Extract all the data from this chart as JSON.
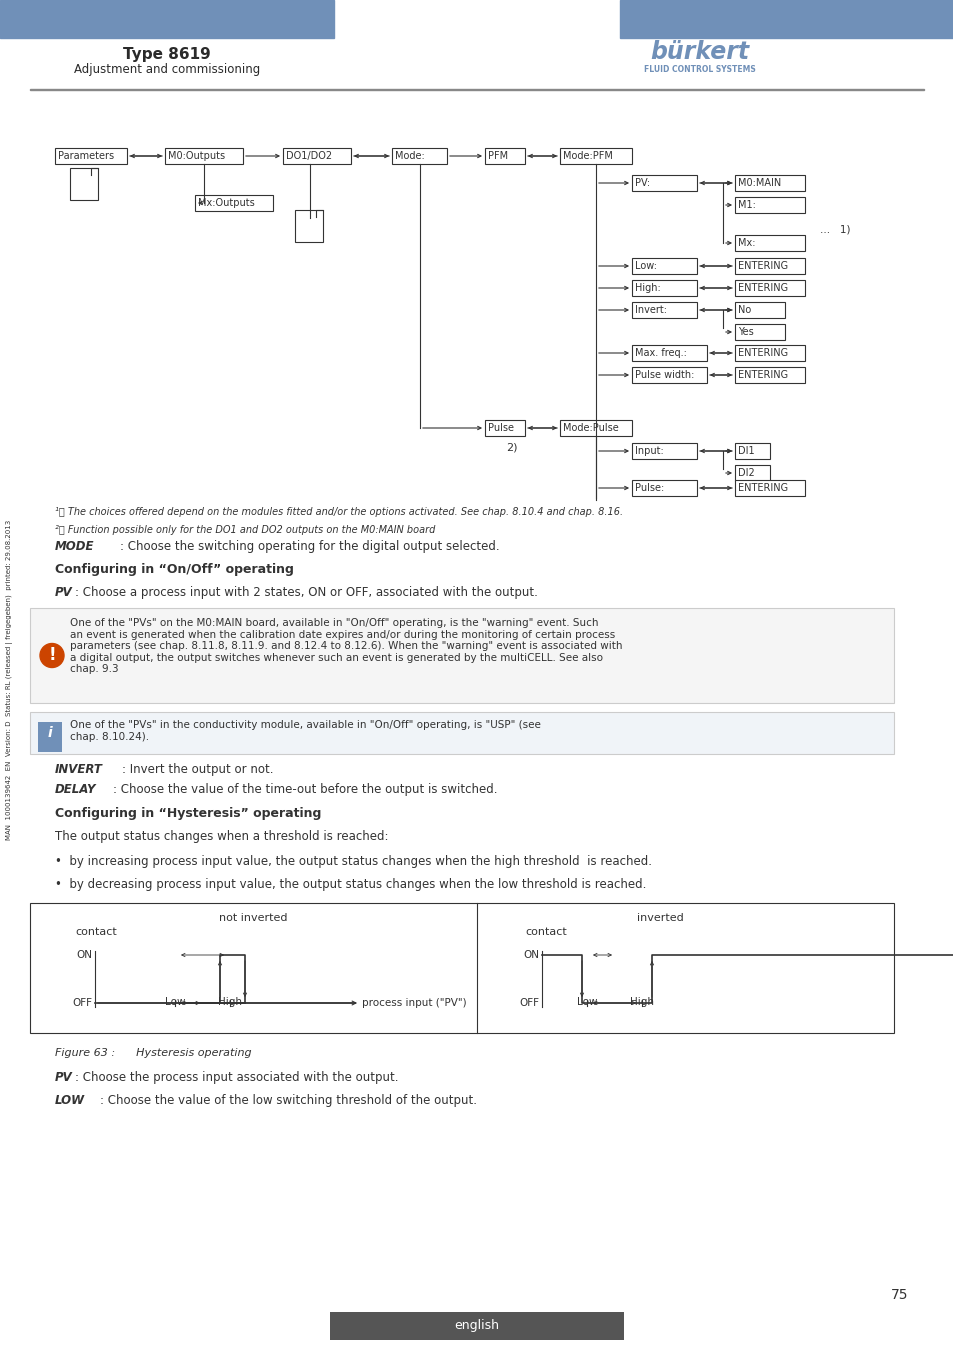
{
  "page_bg": "#ffffff",
  "header_bar_color": "#7090b8",
  "header_title": "Type 8619",
  "header_subtitle": "Adjustment and commissioning",
  "burkert_text": "bürkert",
  "burkert_sub": "FLUID CONTROL SYSTEMS",
  "footer_text": "english",
  "page_number": "75",
  "side_text": "MAN  1000139642  EN  Version: D  Status: RL (released | freigegeben)  printed: 29.08.2013",
  "footnote1": "¹⧣ The choices offered depend on the modules fitted and/or the options activated. See chap. 8.10.4 and chap. 8.16.",
  "footnote2": "²⧣ Function possible only for the DO1 and DO2 outputs on the M0:MAIN board",
  "figure_caption": "Figure 63 :      Hysteresis operating",
  "not_inverted_title": "not inverted",
  "inverted_title": "inverted",
  "contact_label": "contact",
  "on_label": "ON",
  "off_label": "OFF",
  "low_label": "Low",
  "high_label": "High",
  "pv_label": "process input (\"PV\")"
}
